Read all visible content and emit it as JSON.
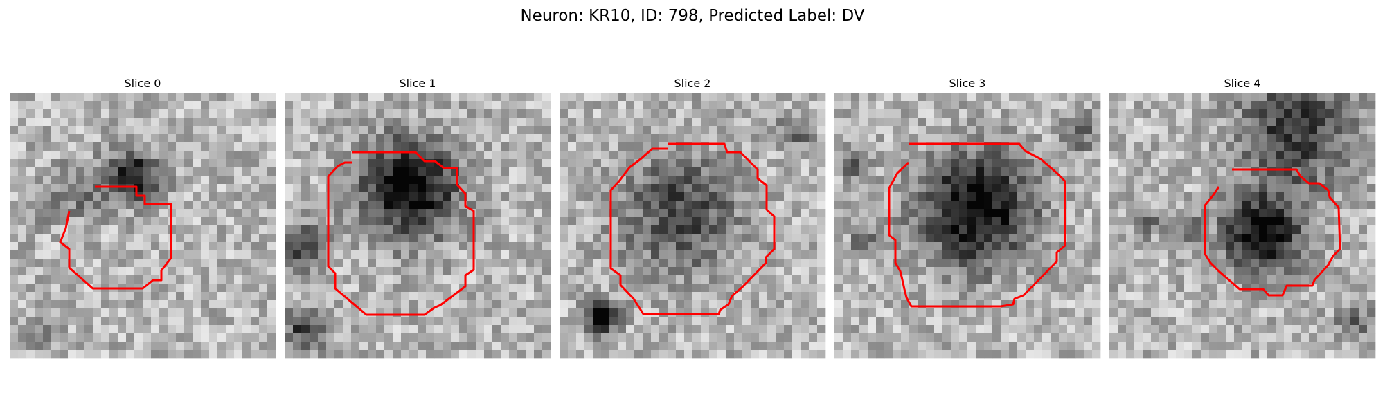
{
  "figure": {
    "title": "Neuron: KR10, ID: 798, Predicted Label: DV",
    "outline_color": "#ff0000",
    "colormap": "gray"
  },
  "panels": [
    {
      "label": "Slice 0"
    },
    {
      "label": "Slice 1"
    },
    {
      "label": "Slice 2"
    },
    {
      "label": "Slice 3"
    },
    {
      "label": "Slice 4"
    }
  ]
}
